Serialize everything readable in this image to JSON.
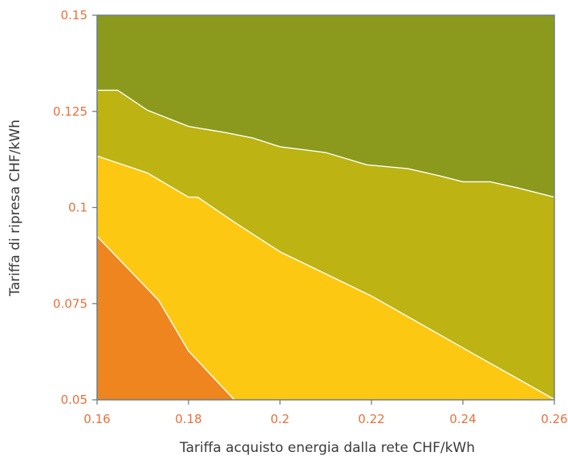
{
  "chart_data": {
    "type": "area",
    "title": "",
    "xlabel": "Tariffa acquisto energia dalla rete CHF/kWh",
    "ylabel": "Tariffa di ripresa CHF/kWh",
    "xlim": [
      0.16,
      0.26
    ],
    "ylim": [
      0.05,
      0.15
    ],
    "x_ticks": [
      0.16,
      0.18,
      0.2,
      0.22,
      0.24,
      0.26
    ],
    "x_tick_labels": [
      "0.16",
      "0.18",
      "0.2",
      "0.22",
      "0.24",
      "0.26"
    ],
    "y_ticks": [
      0.05,
      0.075,
      0.1,
      0.125,
      0.15
    ],
    "y_tick_labels": [
      "0.05",
      "0.075",
      "0.1",
      "0.125",
      "0.15"
    ],
    "grid": false,
    "legend": "none",
    "tick_label_color": "#e8703a",
    "axis_color": "#6e7f8a",
    "boundary_color": "#ffffff",
    "regions": [
      {
        "color": "#8b9a1c"
      },
      {
        "color": "#bdb312"
      },
      {
        "color": "#fcc811"
      },
      {
        "color": "#ee851e"
      }
    ],
    "boundaries": [
      {
        "between": [
          0,
          1
        ],
        "points": [
          [
            0.16,
            0.1305
          ],
          [
            0.1645,
            0.1305
          ],
          [
            0.171,
            0.1253
          ],
          [
            0.18,
            0.1211
          ],
          [
            0.188,
            0.1195
          ],
          [
            0.194,
            0.1181
          ],
          [
            0.2,
            0.1158
          ],
          [
            0.21,
            0.1143
          ],
          [
            0.219,
            0.1111
          ],
          [
            0.228,
            0.1101
          ],
          [
            0.235,
            0.1082
          ],
          [
            0.24,
            0.1067
          ],
          [
            0.246,
            0.1067
          ],
          [
            0.252,
            0.1051
          ],
          [
            0.26,
            0.1027
          ]
        ]
      },
      {
        "between": [
          1,
          2
        ],
        "points": [
          [
            0.16,
            0.1134
          ],
          [
            0.171,
            0.109
          ],
          [
            0.18,
            0.1027
          ],
          [
            0.182,
            0.1027
          ],
          [
            0.19,
            0.0962
          ],
          [
            0.2,
            0.0885
          ],
          [
            0.22,
            0.077
          ],
          [
            0.24,
            0.0635
          ],
          [
            0.26,
            0.0501
          ]
        ]
      },
      {
        "between": [
          2,
          3
        ],
        "points": [
          [
            0.16,
            0.0925
          ],
          [
            0.1735,
            0.0758
          ],
          [
            0.18,
            0.0627
          ],
          [
            0.19,
            0.05
          ]
        ]
      }
    ]
  }
}
